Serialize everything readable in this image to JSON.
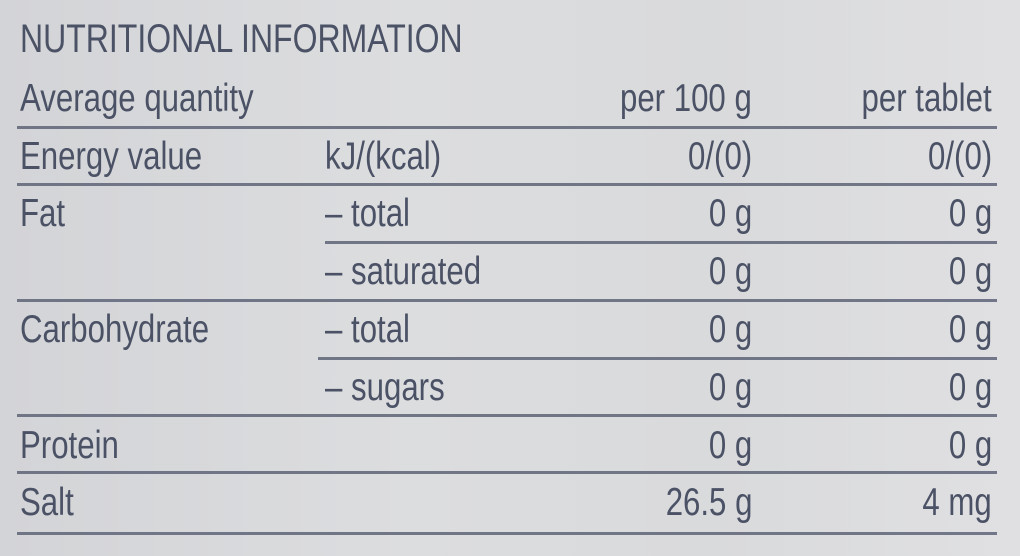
{
  "title": "NUTRITIONAL INFORMATION",
  "header": {
    "label": "Average quantity",
    "col1": "per 100 g",
    "col2": "per tablet"
  },
  "rows": [
    {
      "label": "Energy value",
      "sub": "kJ/(kcal)",
      "per100": "0/(0)",
      "perTablet": "0/(0)"
    },
    {
      "label": "Fat",
      "sub": "– total",
      "per100": "0 g",
      "perTablet": "0 g"
    },
    {
      "label": "",
      "sub": "– saturated",
      "per100": "0 g",
      "perTablet": "0 g"
    },
    {
      "label": "Carbohydrate",
      "sub": "– total",
      "per100": "0 g",
      "perTablet": "0 g"
    },
    {
      "label": "",
      "sub": "– sugars",
      "per100": "0 g",
      "perTablet": "0 g"
    },
    {
      "label": "Protein",
      "sub": "",
      "per100": "0 g",
      "perTablet": "0 g"
    },
    {
      "label": "Salt",
      "sub": "",
      "per100": "26.5 g",
      "perTablet": "4 mg"
    }
  ],
  "colors": {
    "text": "#4b5266",
    "background": "#d8d9db",
    "rule": "#5e6478"
  }
}
